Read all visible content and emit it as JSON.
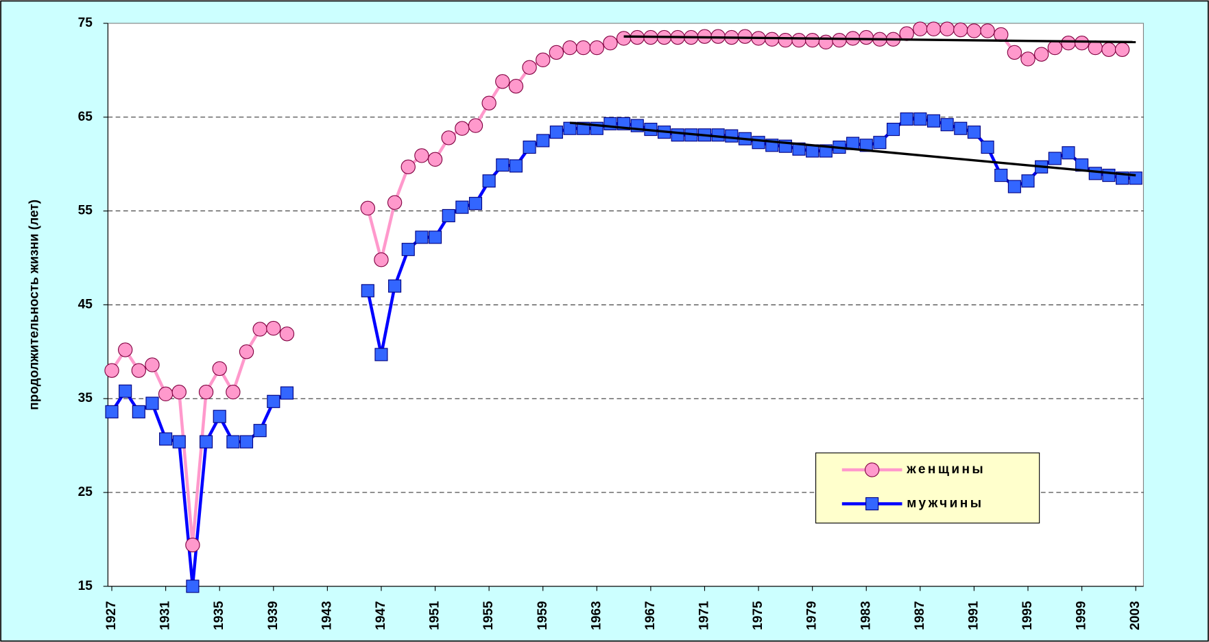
{
  "chart_data": {
    "type": "line",
    "y_label": "продолжительность жизни (лет)",
    "x": [
      1927,
      1928,
      1929,
      1930,
      1931,
      1932,
      1933,
      1934,
      1935,
      1936,
      1937,
      1938,
      1939,
      1940,
      1941,
      1942,
      1943,
      1944,
      1945,
      1946,
      1947,
      1948,
      1949,
      1950,
      1951,
      1952,
      1953,
      1954,
      1955,
      1956,
      1957,
      1958,
      1959,
      1960,
      1961,
      1962,
      1963,
      1964,
      1965,
      1966,
      1967,
      1968,
      1969,
      1970,
      1971,
      1972,
      1973,
      1974,
      1975,
      1976,
      1977,
      1978,
      1979,
      1980,
      1981,
      1982,
      1983,
      1984,
      1985,
      1986,
      1987,
      1988,
      1989,
      1990,
      1991,
      1992,
      1993,
      1994,
      1995,
      1996,
      1997,
      1998,
      1999,
      2000,
      2001,
      2002,
      2003
    ],
    "series": [
      {
        "name": "женщины",
        "color": "#ff99cc",
        "marker": "circle",
        "values": [
          38,
          40.2,
          38,
          38.6,
          35.5,
          35.7,
          19.4,
          35.7,
          38.2,
          35.7,
          40,
          42.4,
          42.5,
          41.9,
          null,
          null,
          null,
          null,
          null,
          55.3,
          49.8,
          55.9,
          59.7,
          60.9,
          60.5,
          62.8,
          63.8,
          64.1,
          66.5,
          68.8,
          68.3,
          70.3,
          71.1,
          71.9,
          72.4,
          72.4,
          72.4,
          72.9,
          73.4,
          73.5,
          73.5,
          73.5,
          73.5,
          73.5,
          73.6,
          73.6,
          73.5,
          73.6,
          73.4,
          73.3,
          73.2,
          73.2,
          73.2,
          73.0,
          73.2,
          73.4,
          73.5,
          73.3,
          73.3,
          73.9,
          74.4,
          74.4,
          74.4,
          74.3,
          74.2,
          74.2,
          73.8,
          71.9,
          71.2,
          71.7,
          72.4,
          72.9,
          72.9,
          72.4,
          72.2,
          72.2,
          null
        ]
      },
      {
        "name": "мужчины",
        "color": "#0000ff",
        "marker": "square",
        "values": [
          33.6,
          35.8,
          33.6,
          34.5,
          30.7,
          30.4,
          15,
          30.4,
          33.1,
          30.4,
          30.4,
          31.6,
          34.7,
          35.6,
          null,
          null,
          null,
          null,
          null,
          46.5,
          39.7,
          47,
          50.9,
          52.2,
          52.2,
          54.5,
          55.4,
          55.8,
          58.2,
          59.9,
          59.8,
          61.8,
          62.5,
          63.4,
          63.8,
          63.8,
          63.8,
          64.3,
          64.3,
          64.1,
          63.7,
          63.4,
          63.1,
          63.1,
          63.1,
          63.1,
          63,
          62.7,
          62.3,
          62,
          61.9,
          61.6,
          61.4,
          61.4,
          61.8,
          62.2,
          62,
          62.3,
          63.7,
          64.8,
          64.8,
          64.6,
          64.2,
          63.8,
          63.4,
          61.8,
          58.8,
          57.6,
          58.2,
          59.7,
          60.6,
          61.2,
          59.9,
          59,
          58.8,
          58.5,
          58.5
        ]
      }
    ],
    "trendlines": [
      {
        "x": [
          1965,
          2003
        ],
        "values": [
          73.6,
          73.0
        ],
        "color": "#000000"
      },
      {
        "x": [
          1961,
          2003
        ],
        "values": [
          64.4,
          58.8
        ],
        "color": "#000000"
      }
    ],
    "xlim": [
      1927,
      2003
    ],
    "xticks": [
      1927,
      1931,
      1935,
      1939,
      1943,
      1947,
      1951,
      1955,
      1959,
      1963,
      1967,
      1971,
      1975,
      1979,
      1983,
      1987,
      1991,
      1995,
      1999,
      2003
    ],
    "ylim": [
      15,
      75
    ],
    "yticks": [
      15,
      25,
      35,
      45,
      55,
      65,
      75
    ],
    "grid": true,
    "legend": "lower right"
  }
}
